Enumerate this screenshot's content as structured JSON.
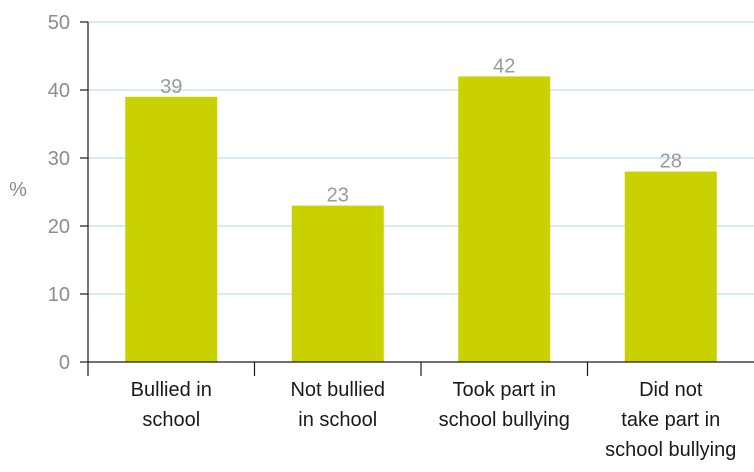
{
  "chart_data": {
    "type": "bar",
    "categories": [
      [
        "Bullied in",
        "school"
      ],
      [
        "Not bullied",
        "in school"
      ],
      [
        "Took part in",
        "school bullying"
      ],
      [
        "Did not",
        "take part in",
        "school bullying"
      ]
    ],
    "values": [
      39,
      23,
      42,
      28
    ],
    "data_labels": [
      "39",
      "23",
      "42",
      "28"
    ],
    "title": "",
    "xlabel": "",
    "ylabel": "%",
    "ylim": [
      0,
      50
    ],
    "yticks": [
      0,
      10,
      20,
      30,
      40,
      50
    ],
    "grid": true,
    "colors": {
      "bar": "#c9d200",
      "grid": "#a9d9e6",
      "axis": "#1a1a1a",
      "tick_text": "#8c8c8c",
      "data_label": "#9a9a9a"
    }
  }
}
